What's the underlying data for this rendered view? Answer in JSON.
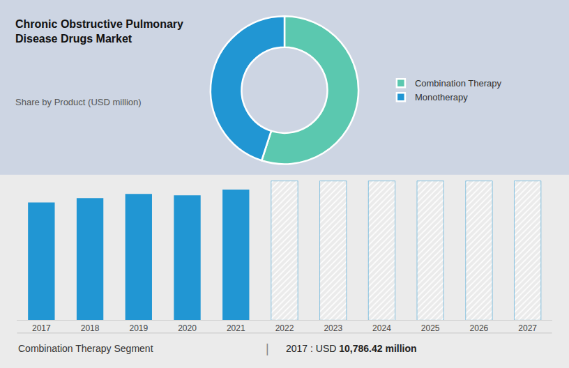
{
  "chart_data": [
    {
      "type": "pie",
      "title": "Chronic Obstructive Pulmonary\nDisease Drugs Market",
      "subtitle": "Share by Product (USD million)",
      "categories": [
        "Combination Therapy",
        "Monotherapy"
      ],
      "values": [
        55,
        45
      ],
      "colors": [
        "#5bc8af",
        "#2196d3"
      ],
      "legend": "right"
    },
    {
      "type": "bar",
      "categories": [
        2017,
        2018,
        2019,
        2020,
        2021,
        2022,
        2023,
        2024,
        2025,
        2026,
        2027
      ],
      "values": [
        82,
        85,
        88,
        87,
        91,
        97,
        97,
        97,
        97,
        97,
        97
      ],
      "color": "#2196d3",
      "colors": [
        "#2196d3",
        "#2196d3",
        "#2196d3",
        "#2196d3",
        "#2196d3",
        "#ffffff",
        "#ffffff",
        "#ffffff",
        "#ffffff",
        "#ffffff",
        "#ffffff"
      ],
      "ylim": [
        0,
        100
      ],
      "grid": false,
      "tick_labels": "x",
      "annotations": [
        "Combination Therapy Segment",
        "|",
        "2017 : USD ",
        "10,786.42 million"
      ]
    }
  ]
}
